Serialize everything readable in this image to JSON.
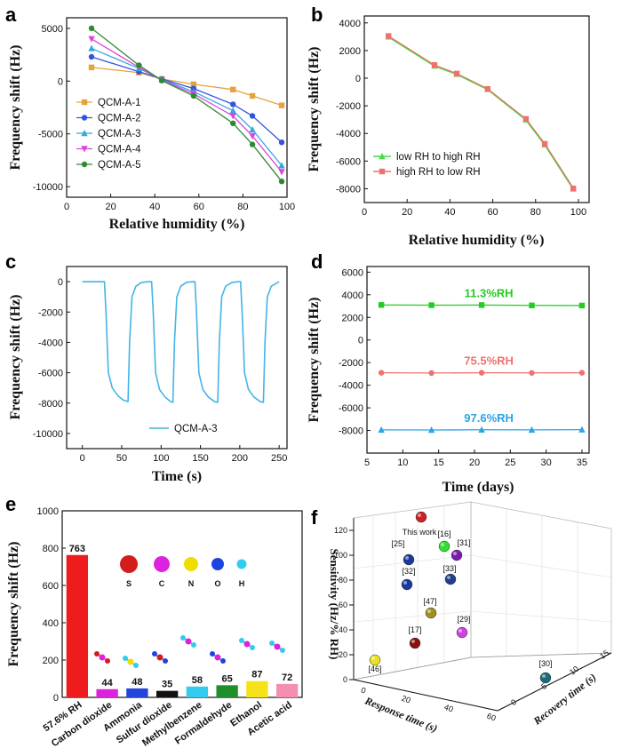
{
  "chart_data": [
    {
      "panel": "a",
      "type": "line",
      "xlabel": "Relative humidity (%)",
      "ylabel": "Frequency shift (Hz)",
      "xlim": [
        0,
        100
      ],
      "ylim": [
        -11000,
        6000
      ],
      "xticks": [
        0,
        20,
        40,
        60,
        80,
        100
      ],
      "yticks": [
        5000,
        0,
        -5000,
        -10000
      ],
      "legend": "bottom-left",
      "x": [
        11.3,
        32.8,
        43.2,
        57.6,
        75.5,
        84.3,
        97.6
      ],
      "series": [
        {
          "name": "QCM-A-1",
          "color": "#e6a23c",
          "marker": "square",
          "values": [
            1300,
            800,
            200,
            -300,
            -800,
            -1400,
            -2300
          ]
        },
        {
          "name": "QCM-A-2",
          "color": "#3355dd",
          "marker": "circle",
          "values": [
            2300,
            900,
            200,
            -700,
            -2200,
            -3300,
            -5800
          ]
        },
        {
          "name": "QCM-A-3",
          "color": "#33a8e0",
          "marker": "triangle",
          "values": [
            3100,
            1200,
            150,
            -1000,
            -2800,
            -4600,
            -8000
          ]
        },
        {
          "name": "QCM-A-4",
          "color": "#dd44dd",
          "marker": "triangle-down",
          "values": [
            4000,
            1300,
            100,
            -1200,
            -3300,
            -5200,
            -8600
          ]
        },
        {
          "name": "QCM-A-5",
          "color": "#2f8a2f",
          "marker": "circle",
          "values": [
            5000,
            1500,
            50,
            -1400,
            -4000,
            -6000,
            -9500
          ]
        }
      ]
    },
    {
      "panel": "b",
      "type": "line",
      "xlabel": "Relative humidity (%)",
      "ylabel": "Frequency shift (Hz)",
      "xlim": [
        0,
        105
      ],
      "ylim": [
        -9000,
        4500
      ],
      "xticks": [
        0,
        20,
        40,
        60,
        80,
        100
      ],
      "yticks": [
        4000,
        2000,
        0,
        -2000,
        -4000,
        -6000,
        -8000
      ],
      "legend": "bottom-left",
      "x": [
        11.3,
        32.8,
        43.2,
        57.6,
        75.5,
        84.3,
        97.6
      ],
      "series": [
        {
          "name": "low RH to high RH",
          "color": "#44dd44",
          "marker": "triangle",
          "values": [
            3000,
            900,
            300,
            -800,
            -3000,
            -4800,
            -8000
          ]
        },
        {
          "name": "high RH to low RH",
          "color": "#f07070",
          "marker": "square",
          "values": [
            3050,
            950,
            330,
            -780,
            -2950,
            -4750,
            -7980
          ]
        }
      ]
    },
    {
      "panel": "c",
      "type": "line",
      "xlabel": "Time (s)",
      "ylabel": "Frequency shift (Hz)",
      "xlim": [
        -20,
        260
      ],
      "ylim": [
        -11000,
        1000
      ],
      "xticks": [
        0,
        50,
        100,
        150,
        200,
        250
      ],
      "yticks": [
        0,
        -2000,
        -4000,
        -6000,
        -8000,
        -10000
      ],
      "legend": "bottom-right",
      "series": [
        {
          "name": "QCM-A-3",
          "color": "#44b4e8",
          "x": [
            0,
            28,
            30,
            33,
            38,
            45,
            52,
            58,
            60,
            63,
            68,
            75,
            85,
            88,
            90,
            93,
            98,
            105,
            112,
            115,
            117,
            120,
            125,
            132,
            140,
            143,
            145,
            148,
            153,
            160,
            168,
            172,
            174,
            177,
            182,
            190,
            198,
            201,
            203,
            206,
            211,
            218,
            226,
            230,
            232,
            235,
            240,
            250
          ],
          "values": [
            0,
            0,
            -2000,
            -6000,
            -7000,
            -7500,
            -7800,
            -7900,
            -4000,
            -1000,
            -300,
            -50,
            0,
            0,
            -2000,
            -6000,
            -7100,
            -7600,
            -7900,
            -7950,
            -4000,
            -1000,
            -300,
            -50,
            0,
            0,
            -2000,
            -6000,
            -7100,
            -7600,
            -7900,
            -7950,
            -4000,
            -1000,
            -300,
            -50,
            0,
            0,
            -2000,
            -6000,
            -7100,
            -7600,
            -7900,
            -7950,
            -4000,
            -1000,
            -300,
            0
          ]
        }
      ]
    },
    {
      "panel": "d",
      "type": "line",
      "xlabel": "Time (days)",
      "ylabel": "Frequency shift (Hz)",
      "xlim": [
        5,
        36
      ],
      "ylim": [
        -10000,
        6500
      ],
      "xticks": [
        5,
        10,
        15,
        20,
        25,
        30,
        35
      ],
      "yticks": [
        6000,
        4000,
        2000,
        0,
        -2000,
        -4000,
        -6000,
        -8000
      ],
      "x": [
        7,
        14,
        21,
        28,
        35
      ],
      "series": [
        {
          "name": "11.3%RH",
          "color": "#22cc22",
          "marker": "square",
          "values": [
            3100,
            3080,
            3090,
            3060,
            3050
          ]
        },
        {
          "name": "75.5%RH",
          "color": "#f07070",
          "marker": "circle",
          "values": [
            -2900,
            -2920,
            -2900,
            -2910,
            -2900
          ]
        },
        {
          "name": "97.6%RH",
          "color": "#2aa4e8",
          "marker": "triangle",
          "values": [
            -7950,
            -7960,
            -7940,
            -7950,
            -7930
          ]
        }
      ]
    },
    {
      "panel": "e",
      "type": "bar",
      "ylabel": "Frequency shift (Hz)",
      "ylim": [
        0,
        1000
      ],
      "yticks": [
        0,
        200,
        400,
        600,
        800,
        1000
      ],
      "categories": [
        "57.6% RH",
        "Carbon dioxide",
        "Ammonia",
        "Sulfur dioxide",
        "Methylbenzene",
        "Formaldehyde",
        "Ethanol",
        "Acetic acid"
      ],
      "values": [
        763,
        44,
        48,
        35,
        58,
        65,
        87,
        72
      ],
      "colors": [
        "#ee1c1c",
        "#dd22dd",
        "#2244dd",
        "#111111",
        "#33ccee",
        "#1f8f2a",
        "#f5e21a",
        "#f58fb0"
      ],
      "atom_legend": [
        {
          "symbol": "S",
          "color": "#d41c1c"
        },
        {
          "symbol": "C",
          "color": "#dd22dd"
        },
        {
          "symbol": "N",
          "color": "#eedd00"
        },
        {
          "symbol": "O",
          "color": "#1e44e0"
        },
        {
          "symbol": "H",
          "color": "#33ccee"
        }
      ]
    },
    {
      "panel": "f",
      "type": "scatter",
      "xlabel": "Response time (s)",
      "ylabel": "Sensitivity (Hz/% RH)",
      "zlabel": "Recovery time (s)",
      "yticks": [
        0,
        20,
        40,
        60,
        80,
        100,
        120
      ],
      "xticks": [
        0,
        20,
        40,
        60
      ],
      "zticks": [
        0,
        5,
        10,
        15
      ],
      "points": [
        {
          "label": "This work",
          "color": "#cc2222"
        },
        {
          "label": "[16]",
          "color": "#33dd33"
        },
        {
          "label": "[25]",
          "color": "#1a3a9a"
        },
        {
          "label": "[32]",
          "color": "#1a3a9a"
        },
        {
          "label": "[31]",
          "color": "#7a1ab0"
        },
        {
          "label": "[33]",
          "color": "#1f3f8a"
        },
        {
          "label": "[47]",
          "color": "#a09020"
        },
        {
          "label": "[29]",
          "color": "#cc44dd"
        },
        {
          "label": "[17]",
          "color": "#8a1010"
        },
        {
          "label": "[46]",
          "color": "#e8e020"
        },
        {
          "label": "[30]",
          "color": "#1a6a7a"
        }
      ]
    }
  ]
}
